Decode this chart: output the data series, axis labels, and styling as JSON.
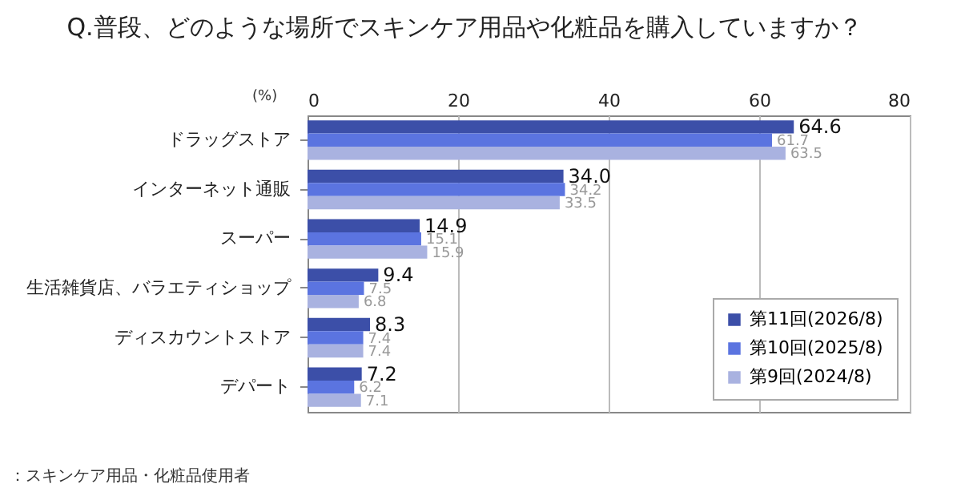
{
  "chart_data": {
    "type": "bar",
    "orientation": "horizontal",
    "title": "Q.普段、どのような場所でスキンケア用品や化粧品を購入していますか？",
    "xlabel": "(%)",
    "categories": [
      "ドラッグストア",
      "インターネット通販",
      "スーパー",
      "生活雑貨店、バラエティショップ",
      "ディスカウントストア",
      "デパート"
    ],
    "series": [
      {
        "name": "第11回(2026/8)",
        "color": "#3c4fa8",
        "values": [
          64.6,
          34.0,
          14.9,
          9.4,
          8.3,
          7.2
        ],
        "value_labels": [
          "64.6",
          "34.0",
          "14.9",
          "9.4",
          "8.3",
          "7.2"
        ]
      },
      {
        "name": "第10回(2025/8)",
        "color": "#5b74e0",
        "values": [
          61.7,
          34.2,
          15.1,
          7.5,
          7.4,
          6.2
        ],
        "value_labels": [
          "61.7",
          "34.2",
          "15.1",
          "7.5",
          "7.4",
          "6.2"
        ]
      },
      {
        "name": "第9回(2024/8)",
        "color": "#a9b2e0",
        "values": [
          63.5,
          33.5,
          15.9,
          6.8,
          7.4,
          7.1
        ],
        "value_labels": [
          "63.5",
          "33.5",
          "15.9",
          "6.8",
          "7.4",
          "7.1"
        ]
      }
    ],
    "xlim": [
      0,
      80
    ],
    "xticks": [
      0,
      20,
      40,
      60,
      80
    ],
    "grid": "x",
    "legend": "bottom right",
    "annotations": [
      "：スキンケア用品・化粧品使用者"
    ]
  }
}
